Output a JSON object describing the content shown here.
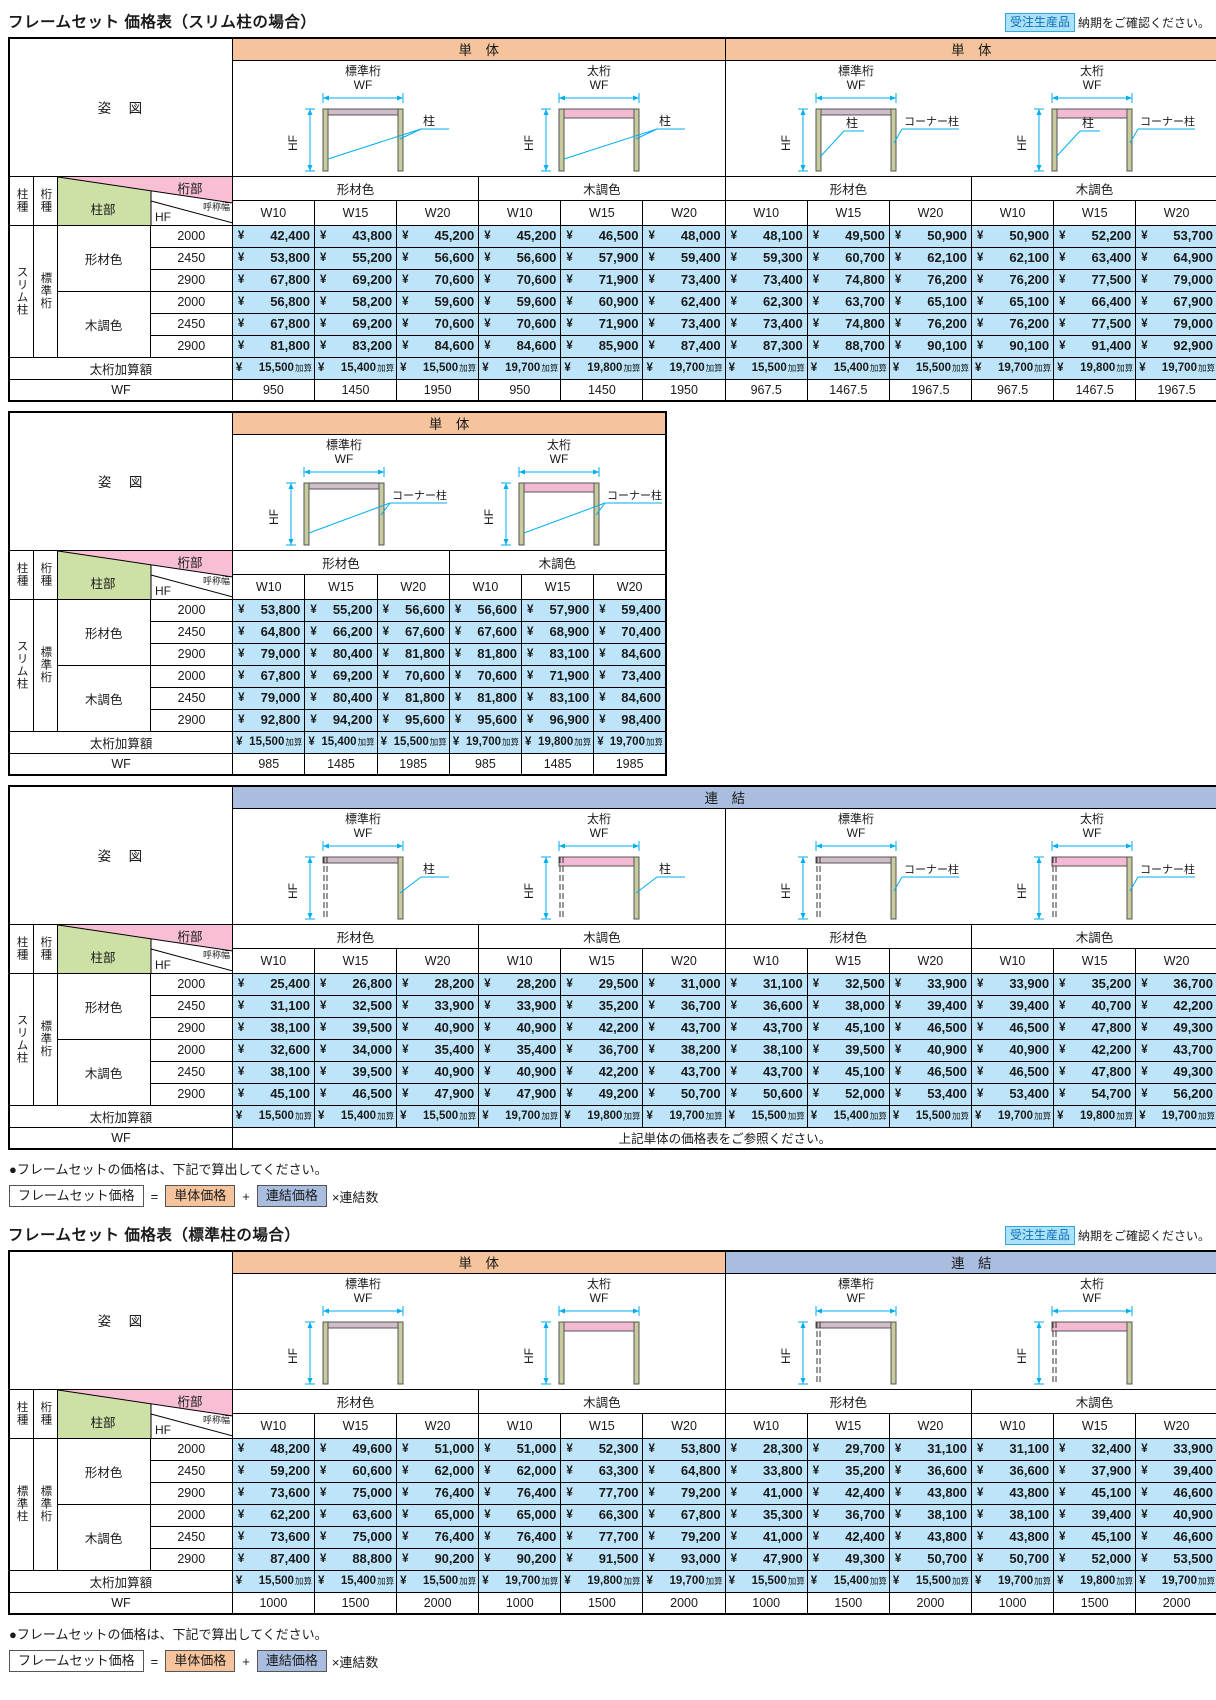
{
  "badge": {
    "label": "受注生産品",
    "note": "納期をご確認ください。"
  },
  "formula_note": "●フレームセットの価格は、下記で算出してください。",
  "formula": {
    "result": "フレームセット価格",
    "eq": "=",
    "a": "単体価格",
    "plus": "+",
    "b": "連結価格",
    "tail": "×連結数"
  },
  "common": {
    "pose": "姿　図",
    "hashira_shu": "柱種",
    "keta_shu": "桁種",
    "keta_bu": "桁部",
    "hashira_bu": "柱部",
    "hf": "HF",
    "width_label": "呼称幅",
    "w_cols": [
      "W10",
      "W15",
      "W20"
    ],
    "color_groups": [
      "形材色",
      "木調色"
    ],
    "hf_values": [
      "2000",
      "2450",
      "2900"
    ],
    "girder": "標準桁",
    "girder_thick": "太桁",
    "wf": "WF",
    "yen": "¥",
    "kasan": "加算",
    "futoketa_kasan": "太桁加算額",
    "hashira": "柱",
    "corner_hashira": "コーナー柱",
    "band_tantai": "単　体",
    "band_renketsu": "連　結"
  },
  "sections": [
    {
      "title": "フレームセット 価格表（スリム柱の場合）",
      "tables": [
        {
          "name": "slim-single-price-table",
          "cols": 12,
          "price_col_w": 82,
          "pillar": "スリム柱",
          "color_header_repeat": 2,
          "bands": [
            {
              "label": "単　体",
              "style": "tantai",
              "span": 6
            },
            {
              "label": "単　体",
              "style": "tantai",
              "span": 6
            }
          ],
          "diagram_groups": [
            {
              "span": 6,
              "diagrams": [
                {
                  "girder": "標準桁",
                  "thick": false,
                  "dashed": false,
                  "mode": "pillar-both"
                },
                {
                  "girder": "太桁",
                  "thick": true,
                  "dashed": false,
                  "mode": "pillar-both"
                }
              ]
            },
            {
              "span": 6,
              "diagrams": [
                {
                  "girder": "標準桁",
                  "thick": false,
                  "dashed": false,
                  "mode": "pillar-corner"
                },
                {
                  "girder": "太桁",
                  "thick": true,
                  "dashed": false,
                  "mode": "pillar-corner"
                }
              ]
            }
          ],
          "body": [
            {
              "color": "形材色",
              "rows": [
                [
                  "42,400",
                  "43,800",
                  "45,200",
                  "45,200",
                  "46,500",
                  "48,000",
                  "48,100",
                  "49,500",
                  "50,900",
                  "50,900",
                  "52,200",
                  "53,700"
                ],
                [
                  "53,800",
                  "55,200",
                  "56,600",
                  "56,600",
                  "57,900",
                  "59,400",
                  "59,300",
                  "60,700",
                  "62,100",
                  "62,100",
                  "63,400",
                  "64,900"
                ],
                [
                  "67,800",
                  "69,200",
                  "70,600",
                  "70,600",
                  "71,900",
                  "73,400",
                  "73,400",
                  "74,800",
                  "76,200",
                  "76,200",
                  "77,500",
                  "79,000"
                ]
              ]
            },
            {
              "color": "木調色",
              "rows": [
                [
                  "56,800",
                  "58,200",
                  "59,600",
                  "59,600",
                  "60,900",
                  "62,400",
                  "62,300",
                  "63,700",
                  "65,100",
                  "65,100",
                  "66,400",
                  "67,900"
                ],
                [
                  "67,800",
                  "69,200",
                  "70,600",
                  "70,600",
                  "71,900",
                  "73,400",
                  "73,400",
                  "74,800",
                  "76,200",
                  "76,200",
                  "77,500",
                  "79,000"
                ],
                [
                  "81,800",
                  "83,200",
                  "84,600",
                  "84,600",
                  "85,900",
                  "87,400",
                  "87,300",
                  "88,700",
                  "90,100",
                  "90,100",
                  "91,400",
                  "92,900"
                ]
              ]
            }
          ],
          "kasan": [
            "15,500",
            "15,400",
            "15,500",
            "19,700",
            "19,800",
            "19,700",
            "15,500",
            "15,400",
            "15,500",
            "19,700",
            "19,800",
            "19,700"
          ],
          "wf": [
            "950",
            "1450",
            "1950",
            "950",
            "1450",
            "1950",
            "967.5",
            "1467.5",
            "1967.5",
            "967.5",
            "1467.5",
            "1967.5"
          ]
        },
        {
          "name": "slim-corner-single-price-table",
          "cols": 6,
          "price_col_w": 72,
          "pillar": "スリム柱",
          "color_header_repeat": 1,
          "bands": [
            {
              "label": "単　体",
              "style": "tantai",
              "span": 6
            }
          ],
          "diagram_groups": [
            {
              "span": 6,
              "diagrams": [
                {
                  "girder": "標準桁",
                  "thick": false,
                  "dashed": false,
                  "mode": "corner-both"
                },
                {
                  "girder": "太桁",
                  "thick": true,
                  "dashed": false,
                  "mode": "corner-both"
                }
              ]
            }
          ],
          "body": [
            {
              "color": "形材色",
              "rows": [
                [
                  "53,800",
                  "55,200",
                  "56,600",
                  "56,600",
                  "57,900",
                  "59,400"
                ],
                [
                  "64,800",
                  "66,200",
                  "67,600",
                  "67,600",
                  "68,900",
                  "70,400"
                ],
                [
                  "79,000",
                  "80,400",
                  "81,800",
                  "81,800",
                  "83,100",
                  "84,600"
                ]
              ]
            },
            {
              "color": "木調色",
              "rows": [
                [
                  "67,800",
                  "69,200",
                  "70,600",
                  "70,600",
                  "71,900",
                  "73,400"
                ],
                [
                  "79,000",
                  "80,400",
                  "81,800",
                  "81,800",
                  "83,100",
                  "84,600"
                ],
                [
                  "92,800",
                  "94,200",
                  "95,600",
                  "95,600",
                  "96,900",
                  "98,400"
                ]
              ]
            }
          ],
          "kasan": [
            "15,500",
            "15,400",
            "15,500",
            "19,700",
            "19,800",
            "19,700"
          ],
          "wf": [
            "985",
            "1485",
            "1985",
            "985",
            "1485",
            "1985"
          ]
        },
        {
          "name": "slim-linked-price-table",
          "cols": 12,
          "price_col_w": 82,
          "pillar": "スリム柱",
          "color_header_repeat": 2,
          "bands": [
            {
              "label": "連　結",
              "style": "renketsu",
              "span": 12
            }
          ],
          "diagram_groups": [
            {
              "span": 6,
              "diagrams": [
                {
                  "girder": "標準桁",
                  "thick": false,
                  "dashed": true,
                  "mode": "pillar-right"
                },
                {
                  "girder": "太桁",
                  "thick": true,
                  "dashed": true,
                  "mode": "pillar-right"
                }
              ]
            },
            {
              "span": 6,
              "diagrams": [
                {
                  "girder": "標準桁",
                  "thick": false,
                  "dashed": true,
                  "mode": "corner-right"
                },
                {
                  "girder": "太桁",
                  "thick": true,
                  "dashed": true,
                  "mode": "corner-right"
                }
              ]
            }
          ],
          "body": [
            {
              "color": "形材色",
              "rows": [
                [
                  "25,400",
                  "26,800",
                  "28,200",
                  "28,200",
                  "29,500",
                  "31,000",
                  "31,100",
                  "32,500",
                  "33,900",
                  "33,900",
                  "35,200",
                  "36,700"
                ],
                [
                  "31,100",
                  "32,500",
                  "33,900",
                  "33,900",
                  "35,200",
                  "36,700",
                  "36,600",
                  "38,000",
                  "39,400",
                  "39,400",
                  "40,700",
                  "42,200"
                ],
                [
                  "38,100",
                  "39,500",
                  "40,900",
                  "40,900",
                  "42,200",
                  "43,700",
                  "43,700",
                  "45,100",
                  "46,500",
                  "46,500",
                  "47,800",
                  "49,300"
                ]
              ]
            },
            {
              "color": "木調色",
              "rows": [
                [
                  "32,600",
                  "34,000",
                  "35,400",
                  "35,400",
                  "36,700",
                  "38,200",
                  "38,100",
                  "39,500",
                  "40,900",
                  "40,900",
                  "42,200",
                  "43,700"
                ],
                [
                  "38,100",
                  "39,500",
                  "40,900",
                  "40,900",
                  "42,200",
                  "43,700",
                  "43,700",
                  "45,100",
                  "46,500",
                  "46,500",
                  "47,800",
                  "49,300"
                ],
                [
                  "45,100",
                  "46,500",
                  "47,900",
                  "47,900",
                  "49,200",
                  "50,700",
                  "50,600",
                  "52,000",
                  "53,400",
                  "53,400",
                  "54,700",
                  "56,200"
                ]
              ]
            }
          ],
          "kasan": [
            "15,500",
            "15,400",
            "15,500",
            "19,700",
            "19,800",
            "19,700",
            "15,500",
            "15,400",
            "15,500",
            "19,700",
            "19,800",
            "19,700"
          ],
          "wf_note": "上記単体の価格表をご参照ください。"
        }
      ]
    },
    {
      "title": "フレームセット 価格表（標準柱の場合）",
      "tables": [
        {
          "name": "standard-pillar-price-table",
          "cols": 12,
          "price_col_w": 82,
          "pillar": "標準柱",
          "color_header_repeat": 2,
          "bands": [
            {
              "label": "単　体",
              "style": "tantai",
              "span": 6
            },
            {
              "label": "連　結",
              "style": "renketsu",
              "span": 6
            }
          ],
          "diagram_groups": [
            {
              "span": 6,
              "diagrams": [
                {
                  "girder": "標準桁",
                  "thick": false,
                  "dashed": false,
                  "mode": "none"
                },
                {
                  "girder": "太桁",
                  "thick": true,
                  "dashed": false,
                  "mode": "none"
                }
              ]
            },
            {
              "span": 6,
              "diagrams": [
                {
                  "girder": "標準桁",
                  "thick": false,
                  "dashed": true,
                  "mode": "none"
                },
                {
                  "girder": "太桁",
                  "thick": true,
                  "dashed": true,
                  "mode": "none"
                }
              ]
            }
          ],
          "body": [
            {
              "color": "形材色",
              "rows": [
                [
                  "48,200",
                  "49,600",
                  "51,000",
                  "51,000",
                  "52,300",
                  "53,800",
                  "28,300",
                  "29,700",
                  "31,100",
                  "31,100",
                  "32,400",
                  "33,900"
                ],
                [
                  "59,200",
                  "60,600",
                  "62,000",
                  "62,000",
                  "63,300",
                  "64,800",
                  "33,800",
                  "35,200",
                  "36,600",
                  "36,600",
                  "37,900",
                  "39,400"
                ],
                [
                  "73,600",
                  "75,000",
                  "76,400",
                  "76,400",
                  "77,700",
                  "79,200",
                  "41,000",
                  "42,400",
                  "43,800",
                  "43,800",
                  "45,100",
                  "46,600"
                ]
              ]
            },
            {
              "color": "木調色",
              "rows": [
                [
                  "62,200",
                  "63,600",
                  "65,000",
                  "65,000",
                  "66,300",
                  "67,800",
                  "35,300",
                  "36,700",
                  "38,100",
                  "38,100",
                  "39,400",
                  "40,900"
                ],
                [
                  "73,600",
                  "75,000",
                  "76,400",
                  "76,400",
                  "77,700",
                  "79,200",
                  "41,000",
                  "42,400",
                  "43,800",
                  "43,800",
                  "45,100",
                  "46,600"
                ],
                [
                  "87,400",
                  "88,800",
                  "90,200",
                  "90,200",
                  "91,500",
                  "93,000",
                  "47,900",
                  "49,300",
                  "50,700",
                  "50,700",
                  "52,000",
                  "53,500"
                ]
              ]
            }
          ],
          "kasan": [
            "15,500",
            "15,400",
            "15,500",
            "19,700",
            "19,800",
            "19,700",
            "15,500",
            "15,400",
            "15,500",
            "19,700",
            "19,800",
            "19,700"
          ],
          "wf": [
            "1000",
            "1500",
            "2000",
            "1000",
            "1500",
            "2000",
            "1000",
            "1500",
            "2000",
            "1000",
            "1500",
            "2000"
          ]
        }
      ]
    }
  ]
}
